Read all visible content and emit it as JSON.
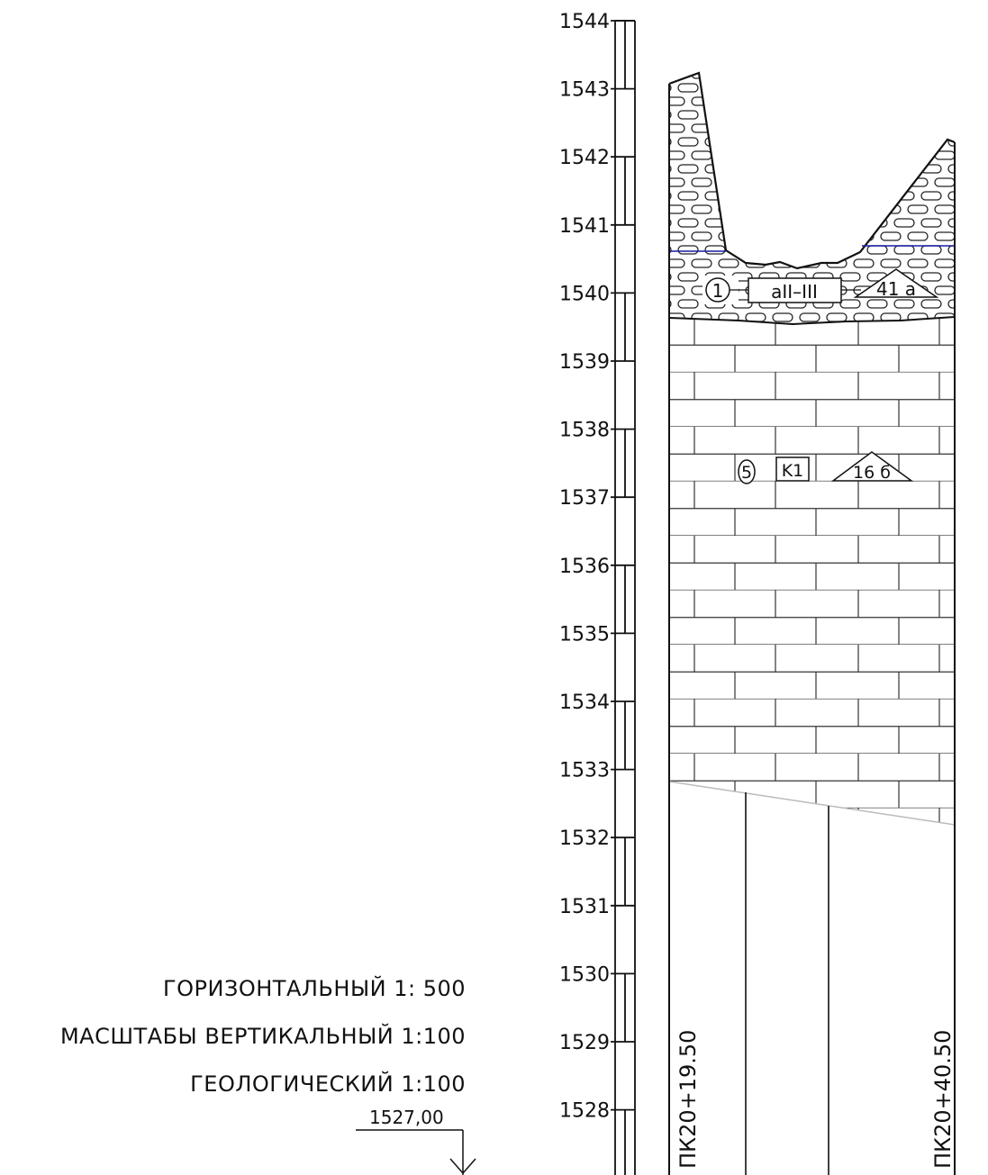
{
  "elevation_scale": {
    "labels": [
      "1544",
      "1543",
      "1542",
      "1541",
      "1540",
      "1539",
      "1538",
      "1537",
      "1536",
      "1535",
      "1534",
      "1533",
      "1532",
      "1531",
      "1530",
      "1529",
      "1528"
    ]
  },
  "layers": {
    "top": {
      "number": "1",
      "index": "aII–III",
      "category": "41 a"
    },
    "bottom": {
      "number": "5",
      "index": "K1",
      "category": "16 б"
    }
  },
  "pickets": {
    "left": "ПК20+19.50",
    "right": "ПК20+40.50"
  },
  "scales": {
    "horizontal": "ГОРИЗОНТАЛЬНЫЙ 1: 500",
    "vertical": "МАСШТАБЫ ВЕРТИКАЛЬНЫЙ 1:100",
    "geological": "ГЕОЛОГИЧЕСКИЙ 1:100"
  },
  "datum": {
    "value": "1527,00"
  },
  "colors": {
    "line": "#111111",
    "water_level": "#1a1aaa",
    "fault": "#bbbbbb"
  }
}
